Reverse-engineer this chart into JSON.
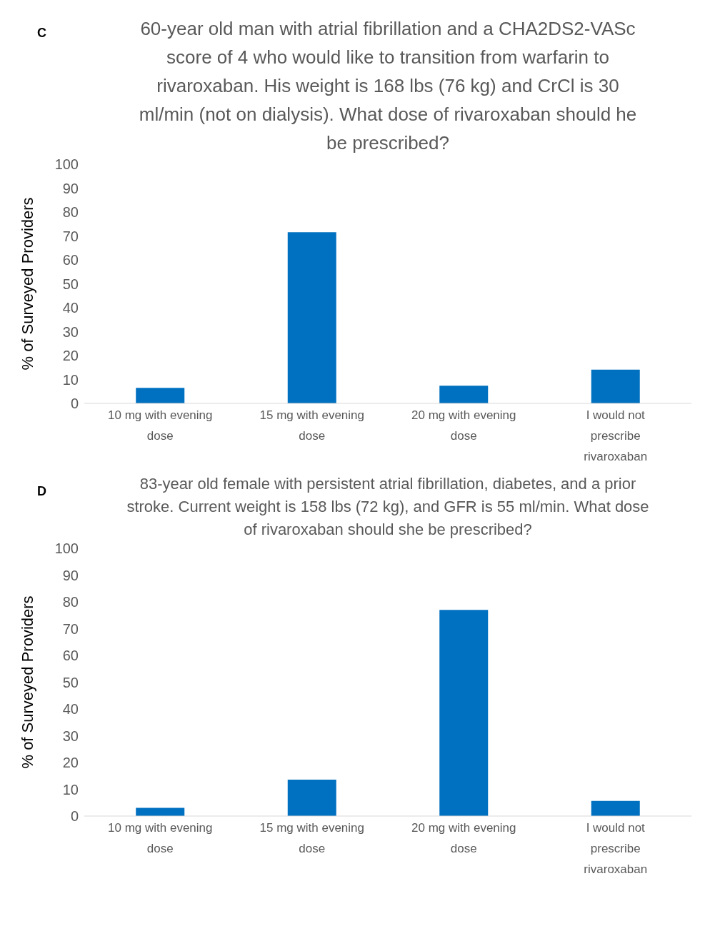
{
  "chart_data": [
    {
      "type": "bar",
      "title": "60-year old man with atrial fibrillation and a CHA2DS2-VASc score of 4 who would like to transition from warfarin to rivaroxaban. His weight is 168 lbs (76 kg) and CrCl is 30 ml/min (not on dialysis). What dose of rivaroxaban should he be prescribed?",
      "ylabel": "% of Surveyed Providers",
      "annotations": [
        "C"
      ],
      "categories": [
        "10 mg with evening dose",
        "15 mg with evening dose",
        "20 mg with evening dose",
        "I would not prescribe rivaroxaban"
      ],
      "values": [
        6.5,
        71.6,
        7.4,
        14.1
      ],
      "color": "#0070c0",
      "ylim": [
        0,
        100
      ],
      "yticks": [
        0,
        10,
        20,
        30,
        40,
        50,
        60,
        70,
        80,
        90,
        100
      ],
      "grid": false,
      "legend": false
    },
    {
      "type": "bar",
      "title": "83-year old female with persistent atrial fibrillation, diabetes, and a prior stroke. Current weight is 158 lbs (72 kg), and GFR is 55 ml/min. What dose of rivaroxaban should she be prescribed?",
      "ylabel": "% of Surveyed Providers",
      "annotations": [
        "D"
      ],
      "categories": [
        "10 mg with evening dose",
        "15 mg with evening dose",
        "20 mg with evening dose",
        "I would not prescribe rivaroxaban"
      ],
      "values": [
        3.1,
        13.6,
        77.0,
        5.7
      ],
      "color": "#0070c0",
      "ylim": [
        0,
        100
      ],
      "yticks": [
        0,
        10,
        20,
        30,
        40,
        50,
        60,
        70,
        80,
        90,
        100
      ],
      "grid": false,
      "legend": false
    }
  ]
}
